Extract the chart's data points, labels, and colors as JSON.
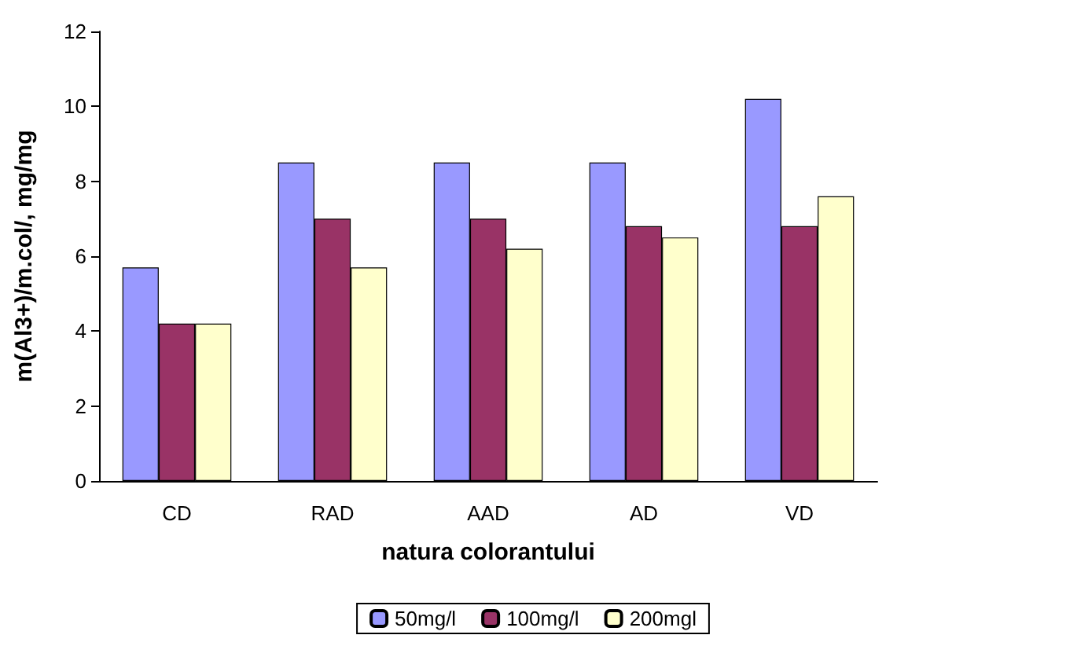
{
  "chart_data": {
    "type": "bar",
    "xlabel": "natura colorantului",
    "ylabel": "m(Al3+)/m.col/, mg/mg",
    "categories": [
      "CD",
      "RAD",
      "AAD",
      "AD",
      "VD"
    ],
    "series": [
      {
        "name": "50mg/l",
        "color": "#9999ff",
        "values": [
          5.7,
          8.5,
          8.5,
          8.5,
          10.2
        ]
      },
      {
        "name": "100mg/l",
        "color": "#993366",
        "values": [
          4.2,
          7.0,
          7.0,
          6.8,
          6.8
        ]
      },
      {
        "name": "200mgl",
        "color": "#ffffcc",
        "values": [
          4.2,
          5.7,
          6.2,
          6.5,
          7.6
        ]
      }
    ],
    "ylim": [
      0,
      12
    ],
    "yticks": [
      0,
      2,
      4,
      6,
      8,
      10,
      12
    ],
    "grid": false,
    "legend": "bottom"
  }
}
